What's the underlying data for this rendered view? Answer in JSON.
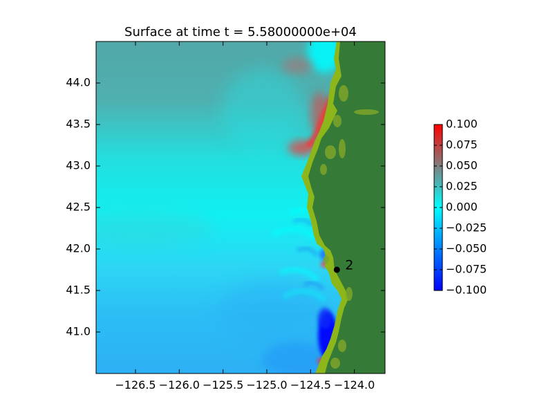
{
  "chart_data": {
    "type": "heatmap",
    "title": "Surface at time t = 5.58000000e+04",
    "xlabel": "",
    "ylabel": "",
    "xlim": [
      -126.95,
      -123.65
    ],
    "ylim": [
      40.5,
      44.5
    ],
    "x_ticks": [
      -126.5,
      -126.0,
      -125.5,
      -125.0,
      -124.5,
      -124.0
    ],
    "x_tick_labels": [
      "−126.5",
      "−126.0",
      "−125.5",
      "−125.0",
      "−124.5",
      "−124.0"
    ],
    "y_ticks": [
      41.0,
      41.5,
      42.0,
      42.5,
      43.0,
      43.5,
      44.0
    ],
    "y_tick_labels": [
      "41.0",
      "41.5",
      "42.0",
      "42.5",
      "43.0",
      "43.5",
      "44.0"
    ],
    "colorbar": {
      "range": [
        -0.1,
        0.1
      ],
      "ticks": [
        0.1,
        0.075,
        0.05,
        0.025,
        0.0,
        -0.025,
        -0.05,
        -0.075,
        -0.1
      ],
      "tick_labels": [
        "0.100",
        "0.075",
        "0.050",
        "0.025",
        "0.000",
        "−0.025",
        "−0.050",
        "−0.075",
        "−0.100"
      ],
      "colors": [
        "#0000ff",
        "#00ffff",
        "#7f7f7f",
        "#ff0000"
      ]
    },
    "gauges": [
      {
        "label": "2",
        "x": -124.2,
        "y": 41.75
      }
    ],
    "land_color": "#357a36",
    "shore_color": "#8cb61a",
    "grid": false,
    "legend": "none"
  }
}
